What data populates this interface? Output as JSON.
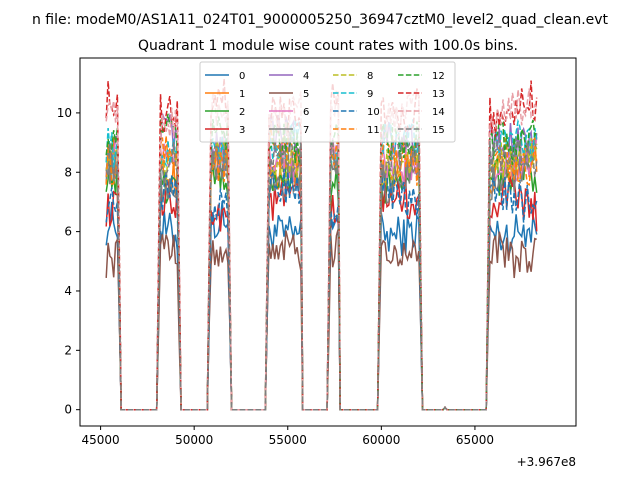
{
  "chart_data": {
    "type": "line",
    "suptitle": "n file: modeM0/AS1A11_024T01_9000005250_36947cztM0_level2_quad_clean.evt",
    "title": "Quadrant 1 module wise count rates with 100.0s bins.",
    "xlabel": "",
    "ylabel": "",
    "x_offset_label": "+3.967e8",
    "xlim": [
      43900,
      70400
    ],
    "ylim": [
      -0.55,
      11.85
    ],
    "xticks": [
      45000,
      50000,
      55000,
      60000,
      65000
    ],
    "xtick_labels": [
      "45000",
      "50000",
      "55000",
      "60000",
      "65000"
    ],
    "yticks": [
      0,
      2,
      4,
      6,
      8,
      10
    ],
    "ytick_labels": [
      "0",
      "2",
      "4",
      "6",
      "8",
      "10"
    ],
    "grid": false,
    "legend": {
      "placement": "top-center",
      "columns": 4
    },
    "on_segments": [
      [
        45300,
        45900
      ],
      [
        48150,
        49150
      ],
      [
        50850,
        51800
      ],
      [
        53950,
        55700
      ],
      [
        57250,
        57700
      ],
      [
        59950,
        62050
      ],
      [
        65750,
        68350
      ]
    ],
    "off_segments": [
      [
        46100,
        48000
      ],
      [
        49300,
        50750
      ],
      [
        51950,
        53850
      ],
      [
        55800,
        57150
      ],
      [
        57800,
        59850
      ],
      [
        62150,
        65650
      ]
    ],
    "series": [
      {
        "name": "0",
        "color": "#1f77b4",
        "dash": "solid",
        "level": 6.2
      },
      {
        "name": "1",
        "color": "#ff7f0e",
        "dash": "solid",
        "level": 8.2
      },
      {
        "name": "2",
        "color": "#2ca02c",
        "dash": "solid",
        "level": 7.7
      },
      {
        "name": "3",
        "color": "#d62728",
        "dash": "solid",
        "level": 6.8
      },
      {
        "name": "4",
        "color": "#9467bd",
        "dash": "solid",
        "level": 9.0
      },
      {
        "name": "5",
        "color": "#8c564b",
        "dash": "solid",
        "level": 5.4
      },
      {
        "name": "6",
        "color": "#e377c2",
        "dash": "solid",
        "level": 8.6
      },
      {
        "name": "7",
        "color": "#7f7f7f",
        "dash": "solid",
        "level": 8.0
      },
      {
        "name": "8",
        "color": "#bcbd22",
        "dash": "dashed",
        "level": 8.3
      },
      {
        "name": "9",
        "color": "#17becf",
        "dash": "dashed",
        "level": 8.8
      },
      {
        "name": "10",
        "color": "#1f77b4",
        "dash": "dashed",
        "level": 7.1
      },
      {
        "name": "11",
        "color": "#ff7f0e",
        "dash": "dashed",
        "level": 8.5
      },
      {
        "name": "12",
        "color": "#2ca02c",
        "dash": "dashed",
        "level": 9.3
      },
      {
        "name": "13",
        "color": "#d62728",
        "dash": "dashed",
        "level": 10.2
      },
      {
        "name": "14",
        "color": "#e8a0a7",
        "dash": "dashed",
        "level": 9.9
      },
      {
        "name": "15",
        "color": "#7f7f7f",
        "dash": "dashed",
        "level": 8.4
      }
    ]
  }
}
